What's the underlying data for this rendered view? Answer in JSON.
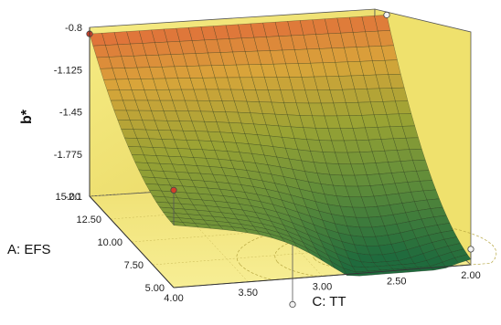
{
  "chart_data": {
    "type": "surface3d",
    "title": "",
    "zlabel": "b*",
    "xlabel": "C: TT",
    "ylabel": "A: EFS",
    "z_ticks": [
      "-0.8",
      "-1.125",
      "-1.45",
      "-1.775",
      "-2.1"
    ],
    "x_ticks": [
      "4.00",
      "3.50",
      "3.00",
      "2.50",
      "2.00"
    ],
    "y_ticks": [
      "5.00",
      "7.50",
      "10.00",
      "12.50",
      "15.00"
    ],
    "x_range": [
      2.0,
      4.0
    ],
    "y_range": [
      5.0,
      15.0
    ],
    "z_range": [
      -2.1,
      -0.8
    ],
    "surface_corners": {
      "x4_y15": -0.85,
      "x2_y15": -0.88,
      "x4_y5": -1.62,
      "x2_y5": -1.98
    },
    "surface_minimum_region": {
      "x": 2.6,
      "y": 5.0,
      "z": -2.08
    },
    "design_points": [
      {
        "x": 4.0,
        "y": 15.0,
        "z": -0.85,
        "above_surface": true
      },
      {
        "x": 2.0,
        "y": 15.0,
        "z": -0.88,
        "above_surface": false
      },
      {
        "x": 4.0,
        "y": 5.0,
        "z": -1.35,
        "above_surface": true
      },
      {
        "x": 3.2,
        "y": 5.0,
        "z": -2.3,
        "above_surface": false
      },
      {
        "x": 2.0,
        "y": 5.0,
        "z": -1.98,
        "above_surface": false
      }
    ],
    "colormap": [
      "#1f6b3d",
      "#5f8c3a",
      "#9aa334",
      "#d9a53a",
      "#e2643a"
    ],
    "background_color": "#f3e97a"
  }
}
